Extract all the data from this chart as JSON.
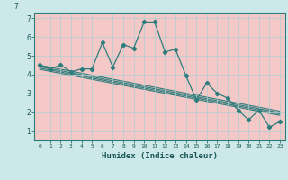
{
  "xlabel": "Humidex (Indice chaleur)",
  "background_color": "#cce8e8",
  "plot_bg_color": "#f5c8c8",
  "line_color": "#2d7d7d",
  "grid_color": "#b0d0d0",
  "xlim": [
    -0.5,
    23.5
  ],
  "ylim": [
    0.5,
    7.3
  ],
  "xticks": [
    0,
    1,
    2,
    3,
    4,
    5,
    6,
    7,
    8,
    9,
    10,
    11,
    12,
    13,
    14,
    15,
    16,
    17,
    18,
    19,
    20,
    21,
    22,
    23
  ],
  "yticks": [
    1,
    2,
    3,
    4,
    5,
    6,
    7
  ],
  "main_x": [
    0,
    1,
    2,
    3,
    4,
    5,
    6,
    7,
    8,
    9,
    10,
    11,
    12,
    13,
    14,
    15,
    16,
    17,
    18,
    19,
    20,
    21,
    22,
    23
  ],
  "main_y": [
    4.5,
    4.3,
    4.5,
    4.15,
    4.3,
    4.3,
    5.7,
    4.4,
    5.6,
    5.4,
    6.8,
    6.8,
    5.2,
    5.35,
    3.95,
    2.65,
    3.55,
    3.0,
    2.75,
    2.1,
    1.6,
    2.1,
    1.2,
    1.5
  ],
  "trend1_x": [
    0,
    23
  ],
  "trend1_y": [
    4.5,
    2.05
  ],
  "trend2_x": [
    0,
    23
  ],
  "trend2_y": [
    4.42,
    1.97
  ],
  "trend3_x": [
    0,
    23
  ],
  "trend3_y": [
    4.35,
    1.9
  ],
  "trend4_x": [
    0,
    23
  ],
  "trend4_y": [
    4.28,
    1.83
  ]
}
